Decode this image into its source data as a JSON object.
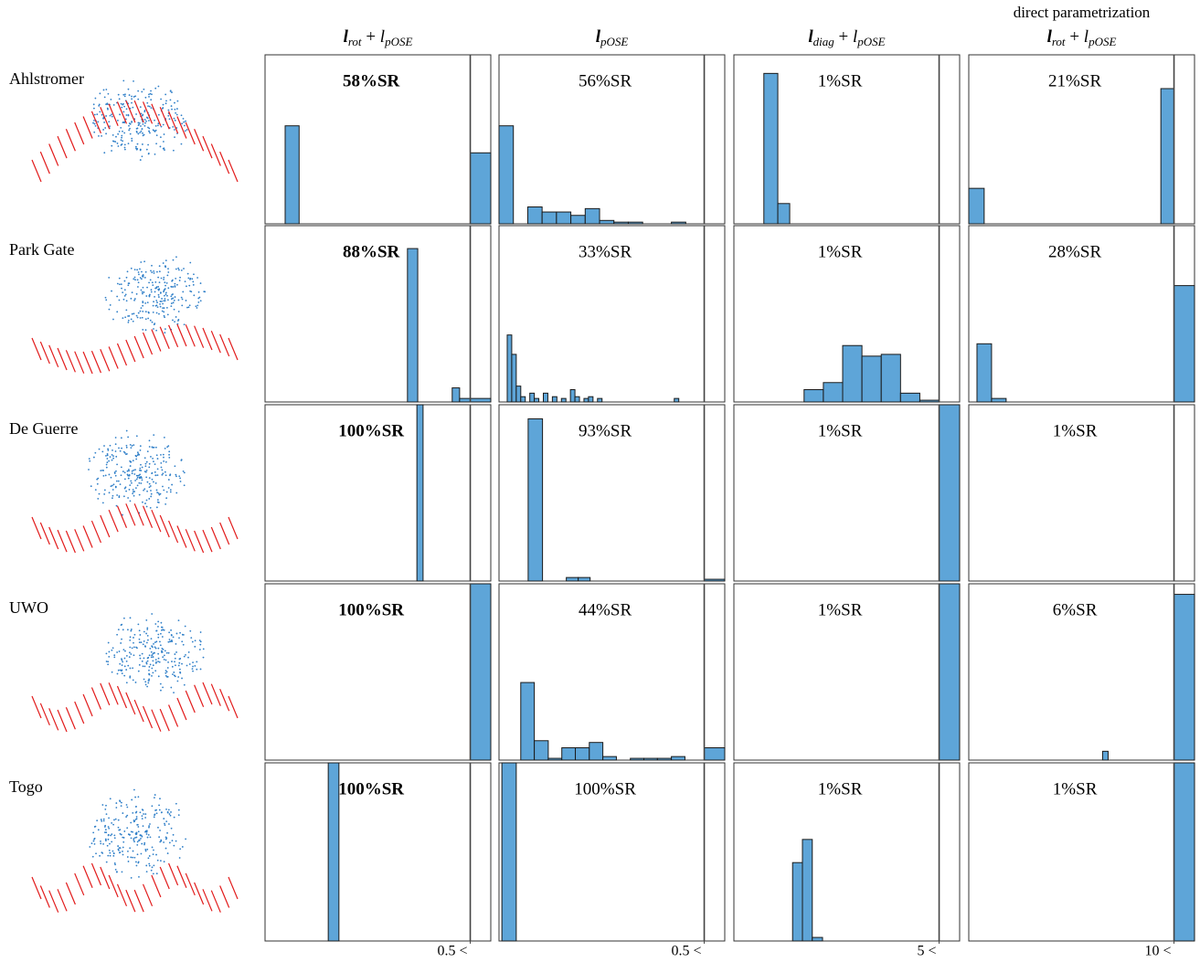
{
  "row_labels": [
    "Ahlstromer",
    "Park Gate",
    "De Guerre",
    "UWO",
    "Togo"
  ],
  "column_headers": [
    {
      "segments": [
        {
          "t": "l",
          "style": "bold-italic"
        },
        {
          "t": "rot",
          "sub": true
        },
        {
          "t": " + "
        },
        {
          "t": "l",
          "style": "italic"
        },
        {
          "t": "pOSE",
          "sub": true
        }
      ]
    },
    {
      "segments": [
        {
          "t": "l",
          "style": "bold-italic"
        },
        {
          "t": "pOSE",
          "sub": true
        }
      ]
    },
    {
      "segments": [
        {
          "t": "l",
          "style": "bold-italic"
        },
        {
          "t": "diag",
          "sub": true
        },
        {
          "t": " + "
        },
        {
          "t": "l",
          "style": "italic"
        },
        {
          "t": "pOSE",
          "sub": true
        }
      ]
    },
    {
      "caption": "direct parametrization",
      "segments": [
        {
          "t": "l",
          "style": "bold-italic"
        },
        {
          "t": "rot",
          "sub": true
        },
        {
          "t": " + "
        },
        {
          "t": "l",
          "style": "italic"
        },
        {
          "t": "pOSE",
          "sub": true
        }
      ]
    }
  ],
  "chart_data": [
    {
      "type": "histogram",
      "annotation": "58%SR",
      "bold": true,
      "bins": [
        0,
        0.049,
        0.083,
        0.5,
        0.55
      ],
      "values": [
        0,
        0.58,
        0,
        0.42
      ],
      "xlim": [
        0,
        0.55
      ],
      "ylim": [
        0,
        1
      ],
      "threshold": 0.5,
      "color": "#5ea5d8"
    },
    {
      "type": "histogram",
      "annotation": "56%SR",
      "bins": [
        0,
        0.035,
        0.07,
        0.105,
        0.14,
        0.175,
        0.21,
        0.245,
        0.28,
        0.315,
        0.35,
        0.385,
        0.42,
        0.455
      ],
      "values": [
        0.58,
        0,
        0.1,
        0.07,
        0.07,
        0.05,
        0.09,
        0.02,
        0.01,
        0.01,
        0,
        0,
        0.01
      ],
      "xlim": [
        0,
        0.55
      ],
      "ylim": [
        0,
        1
      ],
      "threshold": 0.5,
      "color": "#5ea5d8"
    },
    {
      "type": "histogram",
      "annotation": "1%SR",
      "bins": [
        0,
        0.73,
        1.07,
        1.36
      ],
      "values": [
        0,
        0.89,
        0.12
      ],
      "xlim": [
        0,
        5.5
      ],
      "ylim": [
        0,
        1
      ],
      "threshold": 5,
      "color": "#5ea5d8"
    },
    {
      "type": "histogram",
      "annotation": "21%SR",
      "bins": [
        0,
        0.75,
        9.36,
        10
      ],
      "values": [
        0.21,
        0,
        0.8
      ],
      "xlim": [
        0,
        11
      ],
      "ylim": [
        0,
        1
      ],
      "threshold": 10,
      "color": "#5ea5d8"
    },
    {
      "type": "histogram",
      "annotation": "88%SR",
      "bold": true,
      "bins": [
        0,
        0.347,
        0.372,
        0.456,
        0.474,
        0.5,
        0.55
      ],
      "values": [
        0,
        0.87,
        0,
        0.08,
        0.02,
        0.02
      ],
      "xlim": [
        0,
        0.55
      ],
      "ylim": [
        0,
        1
      ],
      "threshold": 0.5,
      "color": "#5ea5d8"
    },
    {
      "type": "histogram",
      "annotation": "33%SR",
      "bins": [
        0.02,
        0.031,
        0.042,
        0.053,
        0.064,
        0.075,
        0.086,
        0.097,
        0.108,
        0.119,
        0.13,
        0.141,
        0.152,
        0.163,
        0.174,
        0.185,
        0.196,
        0.207,
        0.218,
        0.229,
        0.24,
        0.251,
        0.262,
        0.273,
        0.284,
        0.295,
        0.306,
        0.317,
        0.328,
        0.339,
        0.35,
        0.361,
        0.372,
        0.383,
        0.394,
        0.405,
        0.416,
        0.427,
        0.438
      ],
      "values": [
        0.38,
        0.27,
        0.09,
        0.03,
        0,
        0.05,
        0.02,
        0,
        0.05,
        0,
        0.03,
        0,
        0.02,
        0,
        0.07,
        0.03,
        0,
        0.02,
        0.03,
        0,
        0.02,
        0,
        0,
        0,
        0,
        0,
        0,
        0,
        0,
        0,
        0,
        0,
        0,
        0,
        0,
        0,
        0,
        0.02
      ],
      "xlim": [
        0,
        0.55
      ],
      "ylim": [
        0,
        1
      ],
      "threshold": 0.5,
      "color": "#5ea5d8"
    },
    {
      "type": "histogram",
      "annotation": "1%SR",
      "bins": [
        1.71,
        2.18,
        2.65,
        3.12,
        3.59,
        4.06,
        4.53,
        5.0
      ],
      "values": [
        0.07,
        0.11,
        0.32,
        0.26,
        0.27,
        0.05,
        0.01
      ],
      "xlim": [
        0,
        5.5
      ],
      "ylim": [
        0,
        1
      ],
      "threshold": 5,
      "color": "#5ea5d8"
    },
    {
      "type": "histogram",
      "annotation": "28%SR",
      "bins": [
        0.4,
        1.11,
        1.82,
        10,
        11
      ],
      "values": [
        0.33,
        0.02,
        0,
        0.66
      ],
      "xlim": [
        0,
        11
      ],
      "ylim": [
        0,
        1
      ],
      "threshold": 10,
      "color": "#5ea5d8"
    },
    {
      "type": "histogram",
      "annotation": "100%SR",
      "bold": true,
      "bins": [
        0.37,
        0.385
      ],
      "values": [
        1.0
      ],
      "xlim": [
        0,
        0.55
      ],
      "ylim": [
        0,
        1
      ],
      "threshold": 0.5,
      "color": "#5ea5d8"
    },
    {
      "type": "histogram",
      "annotation": "93%SR",
      "bins": [
        0.071,
        0.106,
        0.164,
        0.193,
        0.222,
        0.5,
        0.55
      ],
      "values": [
        0.92,
        0,
        0.02,
        0.02,
        0,
        0.01
      ],
      "xlim": [
        0,
        0.55
      ],
      "ylim": [
        0,
        1
      ],
      "threshold": 0.5,
      "color": "#5ea5d8"
    },
    {
      "type": "histogram",
      "annotation": "1%SR",
      "bins": [
        5,
        5.5
      ],
      "values": [
        1.0
      ],
      "xlim": [
        0,
        5.5
      ],
      "ylim": [
        0,
        1
      ],
      "threshold": 5,
      "color": "#5ea5d8"
    },
    {
      "type": "histogram",
      "annotation": "1%SR",
      "bins": [
        10,
        11
      ],
      "values": [
        0
      ],
      "xlim": [
        0,
        11
      ],
      "ylim": [
        0,
        1
      ],
      "threshold": 10,
      "color": "#5ea5d8"
    },
    {
      "type": "histogram",
      "annotation": "100%SR",
      "bold": true,
      "bins": [
        0.5,
        0.55
      ],
      "values": [
        1.0
      ],
      "xlim": [
        0,
        0.55
      ],
      "ylim": [
        0,
        1
      ],
      "threshold": 0.5,
      "color": "#5ea5d8"
    },
    {
      "type": "histogram",
      "annotation": "44%SR",
      "bins": [
        0.053,
        0.086,
        0.12,
        0.153,
        0.186,
        0.22,
        0.253,
        0.286,
        0.32,
        0.353,
        0.386,
        0.42,
        0.453,
        0.486,
        0.5,
        0.55
      ],
      "values": [
        0.44,
        0.11,
        0.01,
        0.07,
        0.07,
        0.1,
        0.02,
        0,
        0.01,
        0.01,
        0.01,
        0.02,
        0,
        0,
        0.07
      ],
      "xlim": [
        0,
        0.55
      ],
      "ylim": [
        0,
        1
      ],
      "threshold": 0.5,
      "color": "#5ea5d8"
    },
    {
      "type": "histogram",
      "annotation": "1%SR",
      "bins": [
        5,
        5.5
      ],
      "values": [
        1.0
      ],
      "xlim": [
        0,
        5.5
      ],
      "ylim": [
        0,
        1
      ],
      "threshold": 5,
      "color": "#5ea5d8"
    },
    {
      "type": "histogram",
      "annotation": "6%SR",
      "bins": [
        6.52,
        6.79,
        10,
        11
      ],
      "values": [
        0.05,
        0,
        0.94
      ],
      "xlim": [
        0,
        11
      ],
      "ylim": [
        0,
        1
      ],
      "threshold": 10,
      "color": "#5ea5d8"
    },
    {
      "type": "histogram",
      "annotation": "100%SR",
      "bold": true,
      "bins": [
        0.154,
        0.18
      ],
      "values": [
        1.0
      ],
      "xlim": [
        0,
        0.55
      ],
      "ylim": [
        0,
        1
      ],
      "threshold": 0.5,
      "xticks": [
        {
          "value": 0.5,
          "label": "0.5 <"
        }
      ],
      "color": "#5ea5d8"
    },
    {
      "type": "histogram",
      "annotation": "100%SR",
      "bins": [
        0.007,
        0.042
      ],
      "values": [
        1.0
      ],
      "xlim": [
        0,
        0.55
      ],
      "ylim": [
        0,
        1
      ],
      "threshold": 0.5,
      "xticks": [
        {
          "value": 0.5,
          "label": "0.5 <"
        }
      ],
      "color": "#5ea5d8"
    },
    {
      "type": "histogram",
      "annotation": "1%SR",
      "bins": [
        1.43,
        1.67,
        1.91,
        2.16
      ],
      "values": [
        0.44,
        0.57,
        0.02
      ],
      "xlim": [
        0,
        5.5
      ],
      "ylim": [
        0,
        1
      ],
      "threshold": 5,
      "xticks": [
        {
          "value": 5,
          "label": "5 <"
        }
      ],
      "color": "#5ea5d8"
    },
    {
      "type": "histogram",
      "annotation": "1%SR",
      "bins": [
        10,
        11
      ],
      "values": [
        1.0
      ],
      "xlim": [
        0,
        11
      ],
      "ylim": [
        0,
        1
      ],
      "threshold": 10,
      "xticks": [
        {
          "value": 10,
          "label": "10 <"
        }
      ],
      "color": "#5ea5d8"
    }
  ]
}
